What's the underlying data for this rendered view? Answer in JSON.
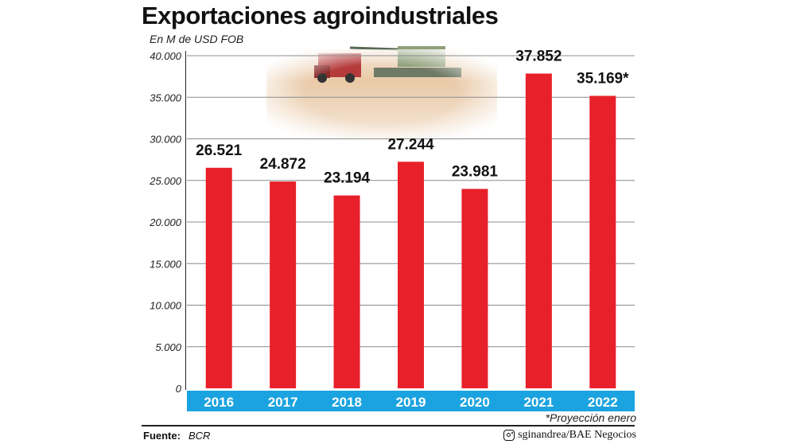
{
  "title": "Exportaciones agroindustriales",
  "subtitle": "En M de USD FOB",
  "note": "*Proyección enero",
  "footer": {
    "source_label": "Fuente:",
    "source_value": "BCR",
    "credit": "sginandrea/BAE Negocios"
  },
  "colors": {
    "bar": "#e8202a",
    "year_band": "#1aa3e0",
    "grid": "#8c8c8c",
    "year_text": "#ffffff"
  },
  "icons": [
    "instagram-icon",
    "harvest-photo"
  ],
  "chart_data": {
    "type": "bar",
    "title": "Exportaciones agroindustriales",
    "subtitle": "En M de USD FOB",
    "categories": [
      "2016",
      "2017",
      "2018",
      "2019",
      "2020",
      "2021",
      "2022"
    ],
    "values": [
      26521,
      24872,
      23194,
      27244,
      23981,
      37852,
      35169
    ],
    "value_labels": [
      "26.521",
      "24.872",
      "23.194",
      "27.244",
      "23.981",
      "37.852",
      "35.169*"
    ],
    "ylim": [
      0,
      40000
    ],
    "yticks": [
      0,
      5000,
      10000,
      15000,
      20000,
      25000,
      30000,
      35000,
      40000
    ],
    "ytick_labels": [
      "0",
      "5.000",
      "10.000",
      "15.000",
      "20.000",
      "25.000",
      "30.000",
      "35.000",
      "40.000"
    ],
    "grid": true
  }
}
